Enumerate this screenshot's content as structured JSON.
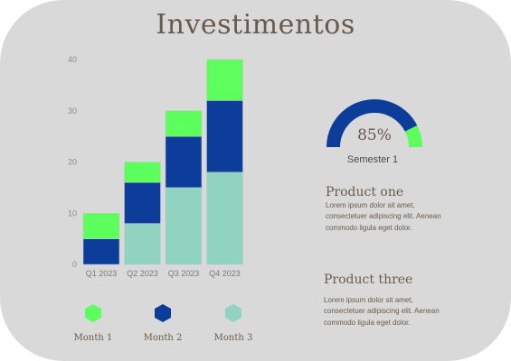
{
  "title": "Investimentos",
  "colors": {
    "background": "#d9d9d9",
    "month1": "#5cff5c",
    "month2": "#0d3d9a",
    "month3": "#8fd3c0",
    "text": "#6b5a4b"
  },
  "chart_data": [
    {
      "type": "bar",
      "stacked": true,
      "categories": [
        "Q1 2023",
        "Q2 2023",
        "Q3 2023",
        "Q4 2023"
      ],
      "series": [
        {
          "name": "Month 3",
          "values": [
            0,
            8,
            15,
            18
          ],
          "color": "#8fd3c0"
        },
        {
          "name": "Month 2",
          "values": [
            5,
            8,
            10,
            14
          ],
          "color": "#0d3d9a"
        },
        {
          "name": "Month 1",
          "values": [
            5,
            4,
            5,
            8
          ],
          "color": "#5cff5c"
        }
      ],
      "yticks": [
        "0",
        "10",
        "20",
        "30",
        "40"
      ],
      "ylim": [
        0,
        40
      ],
      "legend": "bottom"
    },
    {
      "type": "gauge",
      "value": 85,
      "label": "85%",
      "caption": "Semester 1"
    }
  ],
  "legend": [
    {
      "label": "Month 1",
      "icon": "hexagon-icon",
      "color": "#5cff5c"
    },
    {
      "label": "Month 2",
      "icon": "hexagon-icon",
      "color": "#0d3d9a"
    },
    {
      "label": "Month 3",
      "icon": "hexagon-icon",
      "color": "#8fd3c0"
    }
  ],
  "products": [
    {
      "title": "Product one",
      "text": "Lorem ipsum dolor sit amet, consectetuer adipiscing elit. Aenean commodo ligula eget dolor."
    },
    {
      "title": "Product three",
      "text": "Lorem ipsum dolor sit amet, consectetuer adipiscing elit. Aenean commodo ligula eget dolor."
    }
  ]
}
